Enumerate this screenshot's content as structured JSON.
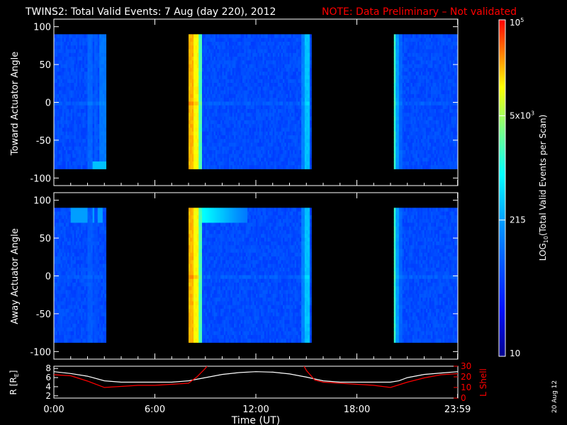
{
  "title": {
    "main": "TWINS2: Total Valid Events:  7 Aug (day 220), 2012",
    "note": "NOTE: Data Preliminary – Not validated",
    "note_color": "#ff0000"
  },
  "stamp": "20 Aug 12",
  "chart_data": [
    {
      "type": "heatmap",
      "name": "toward",
      "ylabel": "Toward Actuator Angle",
      "ylim": [
        -110,
        110
      ],
      "yticks": [
        100,
        50,
        0,
        -50,
        -100
      ],
      "xlim": [
        0,
        24
      ],
      "data_angle_range": [
        -88,
        90
      ],
      "segments": [
        {
          "start": 0.0,
          "end": 3.1
        },
        {
          "start": 8.0,
          "end": 15.3
        },
        {
          "start": 20.2,
          "end": 24.0
        }
      ],
      "bands": [
        {
          "start": 2.05,
          "end": 2.35,
          "level": 0.3
        },
        {
          "start": 2.45,
          "end": 2.6,
          "level": 0.28
        },
        {
          "start": 2.7,
          "end": 3.1,
          "level": 0.33
        },
        {
          "start": 8.0,
          "end": 8.3,
          "level": 0.86
        },
        {
          "start": 8.3,
          "end": 8.6,
          "level": 0.8
        },
        {
          "start": 8.6,
          "end": 8.8,
          "level": 0.62
        },
        {
          "start": 14.7,
          "end": 14.9,
          "level": 0.35
        },
        {
          "start": 14.9,
          "end": 15.2,
          "level": 0.45
        },
        {
          "start": 20.2,
          "end": 20.35,
          "level": 0.6
        },
        {
          "start": 20.35,
          "end": 20.5,
          "level": 0.4
        },
        {
          "start": 20.5,
          "end": 20.7,
          "level": 0.3
        }
      ]
    },
    {
      "type": "heatmap",
      "name": "away",
      "ylabel": "Away Actuator Angle",
      "ylim": [
        -110,
        110
      ],
      "yticks": [
        100,
        50,
        0,
        -50,
        -100
      ],
      "xlim": [
        0,
        24
      ],
      "data_angle_range": [
        -88,
        90
      ],
      "segments": [
        {
          "start": 0.0,
          "end": 3.1
        },
        {
          "start": 8.0,
          "end": 15.3
        },
        {
          "start": 20.2,
          "end": 24.0
        }
      ],
      "bands": [
        {
          "start": 2.05,
          "end": 2.35,
          "level": 0.28
        },
        {
          "start": 2.45,
          "end": 2.6,
          "level": 0.26
        },
        {
          "start": 8.0,
          "end": 8.3,
          "level": 0.86
        },
        {
          "start": 8.3,
          "end": 8.6,
          "level": 0.8
        },
        {
          "start": 8.6,
          "end": 8.8,
          "level": 0.62
        },
        {
          "start": 14.7,
          "end": 14.9,
          "level": 0.35
        },
        {
          "start": 14.9,
          "end": 15.2,
          "level": 0.45
        },
        {
          "start": 20.2,
          "end": 20.35,
          "level": 0.6
        },
        {
          "start": 20.35,
          "end": 20.5,
          "level": 0.4
        },
        {
          "start": 20.5,
          "end": 20.7,
          "level": 0.3
        }
      ]
    },
    {
      "type": "line",
      "name": "orbit",
      "ylabel": "R [Rₑ]",
      "ylabel_base": "R [R",
      "ylabel_sub": "E",
      "ylabel_end": "]",
      "y2label": "L Shell",
      "y2label_color": "#ff0000",
      "ylim": [
        1.5,
        8.5
      ],
      "yticks": [
        2,
        4,
        6,
        8
      ],
      "y2lim": [
        0,
        30
      ],
      "y2ticks": [
        0,
        10,
        20,
        30
      ],
      "xlim": [
        0,
        24
      ],
      "xticks": [
        0,
        6,
        12,
        18,
        23.983
      ],
      "xticklabels": [
        "0:00",
        "6:00",
        "12:00",
        "18:00",
        "23:59"
      ],
      "xlabel": "Time (UT)",
      "series": [
        {
          "axis": "left",
          "color": "#ffffff",
          "x": [
            0,
            1,
            2,
            3,
            4,
            5,
            6,
            7,
            8,
            9,
            10,
            11,
            12,
            13,
            14,
            15,
            16,
            17,
            18,
            19,
            20,
            20.5,
            21,
            22,
            23,
            24
          ],
          "y": [
            7.3,
            6.9,
            6.3,
            5.3,
            5.0,
            5.0,
            5.0,
            5.0,
            5.3,
            6.0,
            6.7,
            7.1,
            7.3,
            7.2,
            6.8,
            6.1,
            5.3,
            5.0,
            5.0,
            5.0,
            5.0,
            5.3,
            6.0,
            6.7,
            7.0,
            7.3
          ]
        },
        {
          "axis": "right",
          "color": "#ff0000",
          "x": [
            0,
            1,
            2,
            3,
            4,
            5,
            6,
            7,
            8,
            8.5,
            9,
            9.3
          ],
          "y": [
            22,
            21,
            16,
            10,
            11,
            12,
            12,
            13,
            14,
            20,
            28,
            35
          ]
        },
        {
          "axis": "right",
          "color": "#ff0000",
          "x": [
            14.7,
            15.0,
            15.5,
            16,
            17,
            18,
            19,
            20,
            21,
            22,
            23,
            24
          ],
          "y": [
            35,
            26,
            17,
            15,
            14,
            13,
            12,
            10,
            15,
            19,
            22,
            23
          ]
        }
      ]
    },
    {
      "type": "colorbar",
      "name": "colorbar",
      "label": "LOG10(Total Valid Events per Scan)",
      "label_parts": [
        "LOG",
        "10",
        "(Total Valid Events per Scan)"
      ],
      "ticks": [
        {
          "pos": 0.0,
          "label": "10"
        },
        {
          "pos": 0.405,
          "label": "215"
        },
        {
          "pos": 0.715,
          "base": "5x10",
          "exp": "3"
        },
        {
          "pos": 1.0,
          "base": "10",
          "exp": "5"
        }
      ]
    }
  ]
}
